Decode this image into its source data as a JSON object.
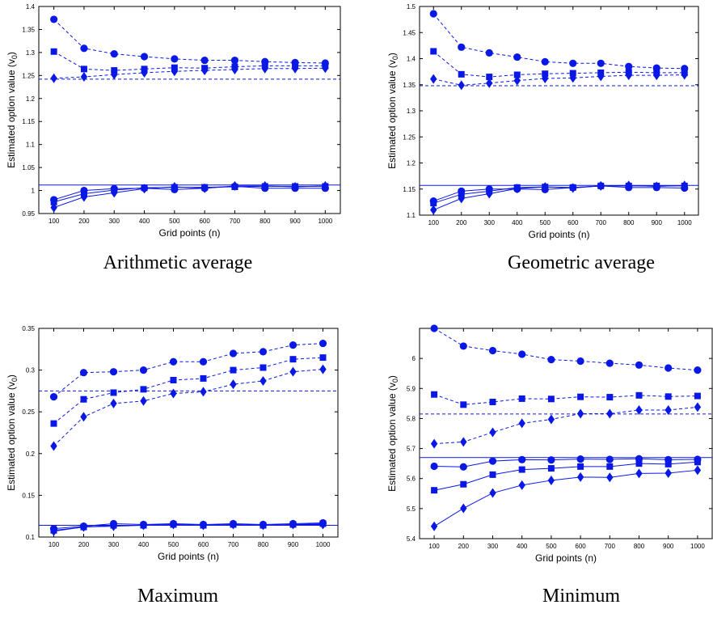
{
  "figure": {
    "colors": {
      "series": "#0a18e6",
      "axis": "#000000"
    },
    "markers": [
      "circle",
      "square",
      "diamond"
    ]
  },
  "chart_data": [
    {
      "type": "line",
      "caption": "Arithmetic average",
      "xlabel": "Grid points (n)",
      "ylabel": "Estimated option value (v",
      "ylabel_sub": "0",
      "ylabel_end": ")",
      "x": [
        100,
        200,
        300,
        400,
        500,
        600,
        700,
        800,
        900,
        1000
      ],
      "xticks": [
        "100",
        "200",
        "300",
        "400",
        "500",
        "600",
        "700",
        "800",
        "900",
        "1000"
      ],
      "xlim": [
        50,
        1050
      ],
      "ylim": [
        0.95,
        1.4
      ],
      "yticks": [
        "0.95",
        "1",
        "1.05",
        "1.1",
        "1.15",
        "1.2",
        "1.25",
        "1.3",
        "1.35",
        "1.4"
      ],
      "reference_lines": [
        {
          "y": 1.242,
          "style": "dashed"
        },
        {
          "y": 1.012,
          "style": "solid"
        }
      ],
      "series": [
        {
          "marker": "circle",
          "style": "dashed",
          "values": [
            1.372,
            1.309,
            1.297,
            1.291,
            1.286,
            1.283,
            1.283,
            1.28,
            1.278,
            1.277
          ]
        },
        {
          "marker": "square",
          "style": "dashed",
          "values": [
            1.302,
            1.264,
            1.261,
            1.264,
            1.267,
            1.266,
            1.269,
            1.271,
            1.271,
            1.271
          ]
        },
        {
          "marker": "diamond",
          "style": "dashed",
          "values": [
            1.244,
            1.247,
            1.252,
            1.256,
            1.259,
            1.261,
            1.263,
            1.265,
            1.265,
            1.266
          ]
        },
        {
          "marker": "circle",
          "style": "solid",
          "values": [
            0.98,
            1.0,
            1.004,
            1.005,
            1.002,
            1.005,
            1.009,
            1.005,
            1.005,
            1.005
          ]
        },
        {
          "marker": "square",
          "style": "solid",
          "values": [
            0.975,
            0.993,
            1.001,
            1.006,
            1.007,
            1.007,
            1.008,
            1.009,
            1.009,
            1.009
          ]
        },
        {
          "marker": "diamond",
          "style": "solid",
          "values": [
            0.963,
            0.986,
            0.995,
            1.004,
            1.008,
            1.005,
            1.01,
            1.01,
            1.008,
            1.01
          ]
        }
      ]
    },
    {
      "type": "line",
      "caption": "Geometric average",
      "xlabel": "Grid points (n)",
      "ylabel": "Estimated option value (v",
      "ylabel_sub": "0",
      "ylabel_end": ")",
      "x": [
        100,
        200,
        300,
        400,
        500,
        600,
        700,
        800,
        900,
        1000
      ],
      "xticks": [
        "100",
        "200",
        "300",
        "400",
        "500",
        "600",
        "700",
        "800",
        "900",
        "1000"
      ],
      "xlim": [
        50,
        1050
      ],
      "ylim": [
        1.1,
        1.5
      ],
      "yticks": [
        "1.1",
        "1.15",
        "1.2",
        "1.25",
        "1.3",
        "1.35",
        "1.4",
        "1.45",
        "1.5"
      ],
      "reference_lines": [
        {
          "y": 1.348,
          "style": "dashed"
        },
        {
          "y": 1.157,
          "style": "solid"
        }
      ],
      "series": [
        {
          "marker": "circle",
          "style": "dashed",
          "values": [
            1.486,
            1.422,
            1.411,
            1.403,
            1.394,
            1.391,
            1.391,
            1.385,
            1.382,
            1.381
          ]
        },
        {
          "marker": "square",
          "style": "dashed",
          "values": [
            1.414,
            1.37,
            1.365,
            1.369,
            1.371,
            1.372,
            1.373,
            1.374,
            1.373,
            1.373
          ]
        },
        {
          "marker": "diamond",
          "style": "dashed",
          "values": [
            1.361,
            1.349,
            1.353,
            1.358,
            1.362,
            1.363,
            1.366,
            1.368,
            1.368,
            1.369
          ]
        },
        {
          "marker": "circle",
          "style": "solid",
          "values": [
            1.127,
            1.146,
            1.15,
            1.15,
            1.149,
            1.153,
            1.156,
            1.153,
            1.153,
            1.152
          ]
        },
        {
          "marker": "square",
          "style": "solid",
          "values": [
            1.123,
            1.14,
            1.146,
            1.153,
            1.154,
            1.153,
            1.156,
            1.156,
            1.156,
            1.156
          ]
        },
        {
          "marker": "diamond",
          "style": "solid",
          "values": [
            1.11,
            1.132,
            1.141,
            1.151,
            1.154,
            1.152,
            1.156,
            1.157,
            1.155,
            1.157
          ]
        }
      ]
    },
    {
      "type": "line",
      "caption": "Maximum",
      "xlabel": "Grid points (n)",
      "ylabel": "Estimated option value (v",
      "ylabel_sub": "0",
      "ylabel_end": ")",
      "x": [
        100,
        200,
        300,
        400,
        500,
        600,
        700,
        800,
        900,
        1000
      ],
      "xticks": [
        "100",
        "200",
        "300",
        "400",
        "500",
        "600",
        "700",
        "800",
        "900",
        "1000"
      ],
      "xlim": [
        50,
        1050
      ],
      "ylim": [
        0.1,
        0.35
      ],
      "yticks": [
        "0.1",
        "0.15",
        "0.2",
        "0.25",
        "0.3",
        "0.35"
      ],
      "reference_lines": [
        {
          "y": 0.275,
          "style": "dashed"
        },
        {
          "y": 0.114,
          "style": "solid"
        }
      ],
      "series": [
        {
          "marker": "circle",
          "style": "dashed",
          "values": [
            0.268,
            0.297,
            0.298,
            0.3,
            0.31,
            0.31,
            0.32,
            0.322,
            0.33,
            0.332
          ]
        },
        {
          "marker": "square",
          "style": "dashed",
          "values": [
            0.236,
            0.265,
            0.273,
            0.277,
            0.288,
            0.29,
            0.3,
            0.303,
            0.313,
            0.315
          ]
        },
        {
          "marker": "diamond",
          "style": "dashed",
          "values": [
            0.209,
            0.244,
            0.26,
            0.263,
            0.272,
            0.274,
            0.283,
            0.287,
            0.298,
            0.301
          ]
        },
        {
          "marker": "circle",
          "style": "solid",
          "values": [
            0.11,
            0.113,
            0.116,
            0.115,
            0.116,
            0.115,
            0.116,
            0.115,
            0.116,
            0.117
          ]
        },
        {
          "marker": "square",
          "style": "solid",
          "values": [
            0.108,
            0.112,
            0.114,
            0.114,
            0.115,
            0.114,
            0.115,
            0.114,
            0.115,
            0.116
          ]
        },
        {
          "marker": "diamond",
          "style": "solid",
          "values": [
            0.107,
            0.112,
            0.113,
            0.114,
            0.115,
            0.114,
            0.115,
            0.114,
            0.115,
            0.115
          ]
        }
      ]
    },
    {
      "type": "line",
      "caption": "Minimum",
      "xlabel": "Grid points (n)",
      "ylabel": "Estimated option value (v",
      "ylabel_sub": "0",
      "ylabel_end": ")",
      "x": [
        100,
        200,
        300,
        400,
        500,
        600,
        700,
        800,
        900,
        1000
      ],
      "xticks": [
        "100",
        "200",
        "300",
        "400",
        "500",
        "600",
        "700",
        "800",
        "900",
        "1000"
      ],
      "xlim": [
        50,
        1050
      ],
      "ylim": [
        5.4,
        6.1
      ],
      "yticks": [
        "5.4",
        "5.5",
        "5.6",
        "5.7",
        "5.8",
        "5.9",
        "6"
      ],
      "reference_lines": [
        {
          "y": 5.815,
          "style": "dashed"
        },
        {
          "y": 5.67,
          "style": "solid"
        }
      ],
      "series": [
        {
          "marker": "circle",
          "style": "dashed",
          "values": [
            6.1,
            6.041,
            6.026,
            6.014,
            5.996,
            5.991,
            5.984,
            5.978,
            5.968,
            5.961
          ]
        },
        {
          "marker": "square",
          "style": "dashed",
          "values": [
            5.88,
            5.846,
            5.855,
            5.866,
            5.865,
            5.872,
            5.871,
            5.877,
            5.873,
            5.875
          ]
        },
        {
          "marker": "diamond",
          "style": "dashed",
          "values": [
            5.716,
            5.722,
            5.754,
            5.784,
            5.797,
            5.816,
            5.816,
            5.828,
            5.828,
            5.838
          ]
        },
        {
          "marker": "circle",
          "style": "solid",
          "values": [
            5.641,
            5.639,
            5.658,
            5.663,
            5.662,
            5.665,
            5.664,
            5.666,
            5.663,
            5.664
          ]
        },
        {
          "marker": "square",
          "style": "solid",
          "values": [
            5.561,
            5.581,
            5.613,
            5.63,
            5.634,
            5.64,
            5.64,
            5.65,
            5.648,
            5.655
          ]
        },
        {
          "marker": "diamond",
          "style": "solid",
          "values": [
            5.441,
            5.501,
            5.552,
            5.578,
            5.594,
            5.605,
            5.604,
            5.617,
            5.618,
            5.628
          ]
        }
      ]
    }
  ]
}
